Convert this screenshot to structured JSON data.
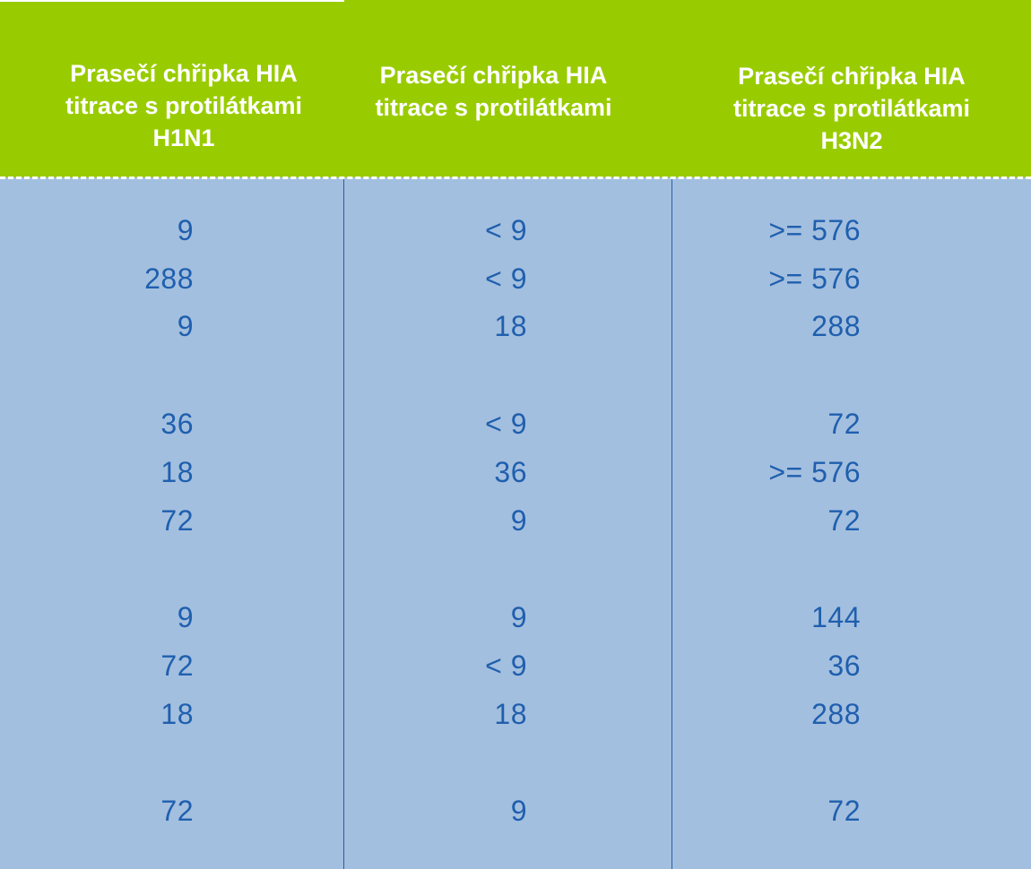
{
  "header": {
    "col1": [
      "Prasečí chřipka HIA",
      "titrace s protilátkami",
      "H1N1"
    ],
    "col2": [
      "Prasečí chřipka HIA",
      "titrace s protilátkami"
    ],
    "col3": [
      "Prasečí chřipka HIA",
      "titrace s protilátkami",
      "H3N2"
    ]
  },
  "rows": [
    {
      "c1": "9",
      "c2": "< 9",
      "c3": ">= 576"
    },
    {
      "c1": "288",
      "c2": "< 9",
      "c3": ">= 576"
    },
    {
      "c1": "9",
      "c2": "18",
      "c3": "288"
    },
    {
      "c1": "36",
      "c2": "< 9",
      "c3": "72"
    },
    {
      "c1": "18",
      "c2": "36",
      "c3": ">= 576"
    },
    {
      "c1": "72",
      "c2": "9",
      "c3": "72"
    },
    {
      "c1": "9",
      "c2": "9",
      "c3": "144"
    },
    {
      "c1": "72",
      "c2": "< 9",
      "c3": "36"
    },
    {
      "c1": "18",
      "c2": "18",
      "c3": "288"
    },
    {
      "c1": "72",
      "c2": "9",
      "c3": "72"
    }
  ],
  "colors": {
    "header_bg": "#99cc00",
    "body_bg": "#a3bfdf",
    "header_text": "#ffffff",
    "value_text": "#1f5fae"
  }
}
